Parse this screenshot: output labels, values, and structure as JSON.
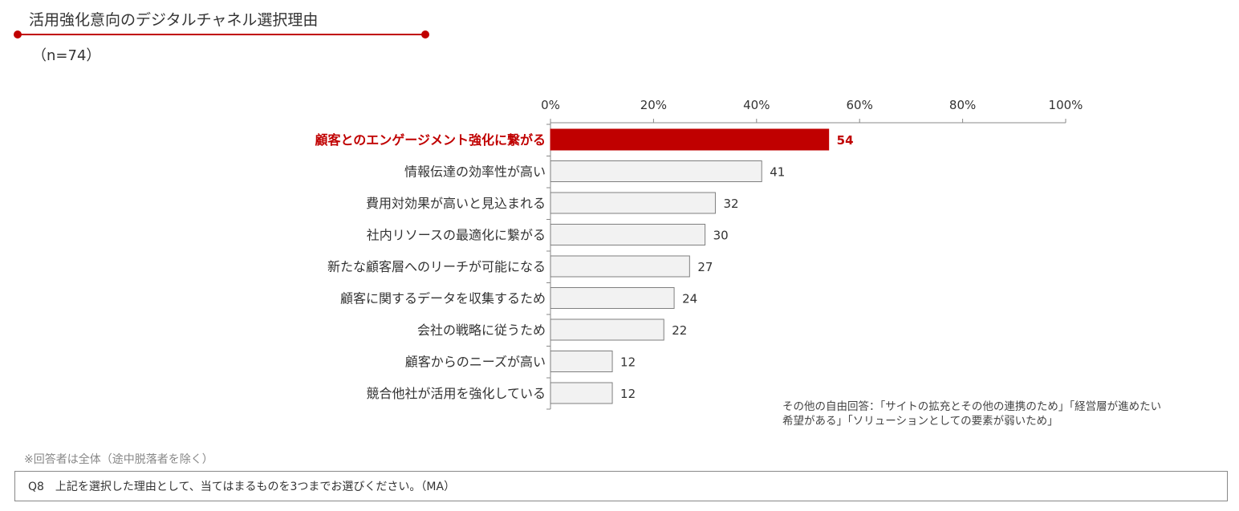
{
  "header": {
    "title": "活用強化意向のデジタルチャネル選択理由",
    "sample": "（n=74）"
  },
  "chart_data": {
    "type": "bar",
    "orientation": "horizontal",
    "categories": [
      "顧客とのエンゲージメント強化に繋がる",
      "情報伝達の効率性が高い",
      "費用対効果が高いと見込まれる",
      "社内リソースの最適化に繋がる",
      "新たな顧客層へのリーチが可能になる",
      "顧客に関するデータを収集するため",
      "会社の戦略に従うため",
      "顧客からのニーズが高い",
      "競合他社が活用を強化している"
    ],
    "values": [
      54,
      41,
      32,
      30,
      27,
      24,
      22,
      12,
      12
    ],
    "value_labels": [
      "54",
      "41",
      "32",
      "30",
      "27",
      "24",
      "22",
      "12",
      "12"
    ],
    "xlim": [
      0,
      100
    ],
    "x_ticks": [
      "0%",
      "20%",
      "40%",
      "60%",
      "80%",
      "100%"
    ],
    "x_axis_position": "top",
    "grid": false,
    "highlight_index": 0,
    "colors": {
      "highlight": "#c00000",
      "default": "#f2f2f2",
      "border": "#7f7f7f"
    }
  },
  "note": "その他の自由回答：「サイトの拡充とその他の連携のため」「経営層が進めたい希望がある」「ソリューションとしての要素が弱いため」",
  "footnote": "※回答者は全体（途中脱落者を除く）",
  "question": "Q8　上記を選択した理由として、当てはまるものを3つまでお選びください。（MA）"
}
